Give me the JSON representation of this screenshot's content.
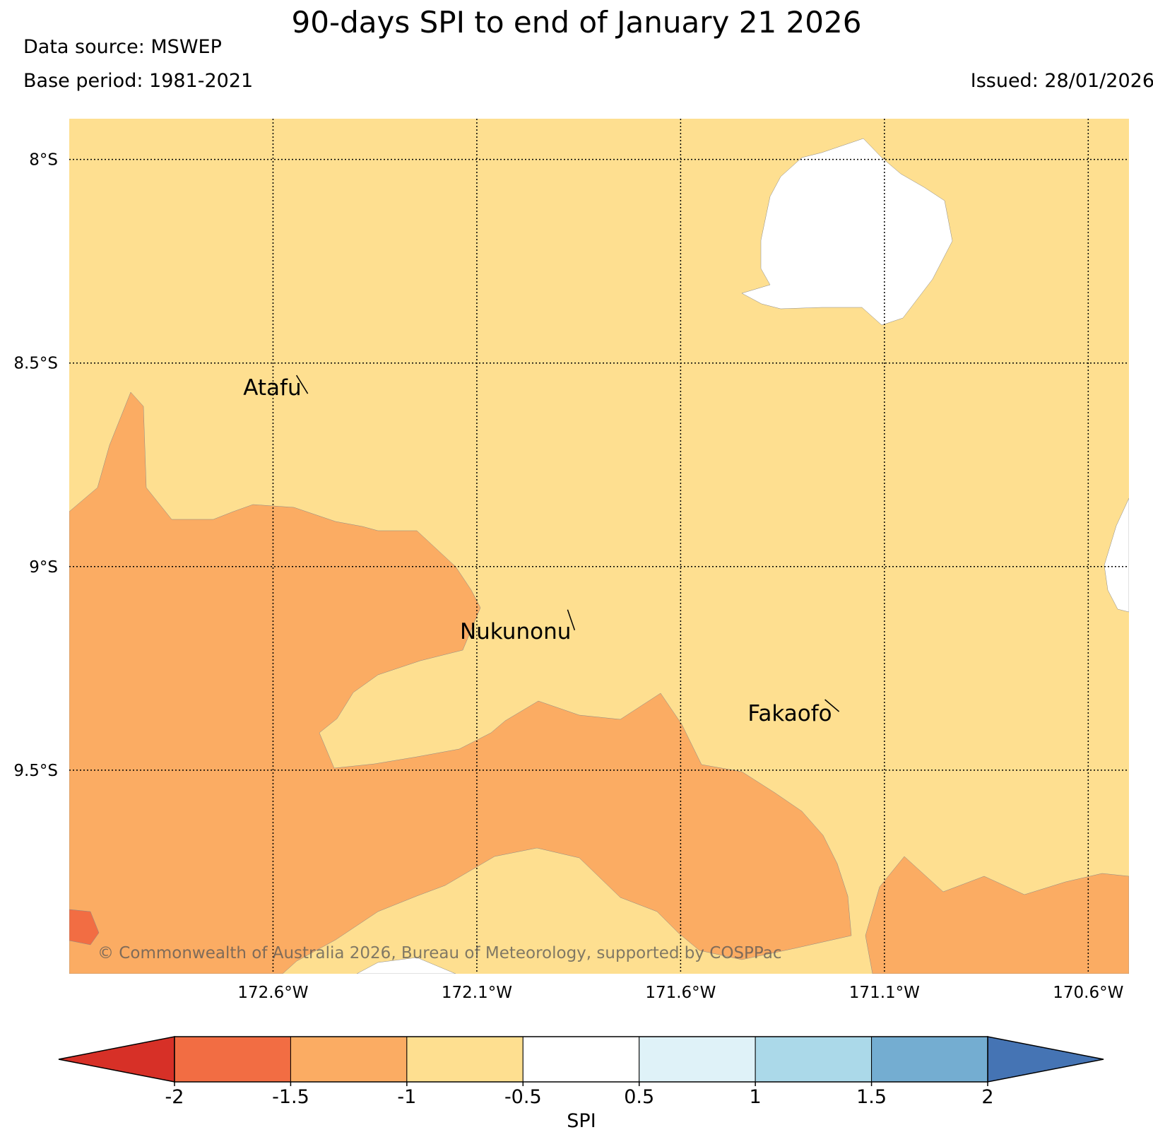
{
  "title": "90-days SPI to end of January 21 2026",
  "data_source": "Data source: MSWEP",
  "base_period": "Base period: 1981-2021",
  "issued": "Issued: 28/01/2026",
  "copyright": "© Commonwealth of Australia 2026, Bureau of Meteorology, supported by COSPPac",
  "map": {
    "lon_range": [
      -173.1,
      -170.5
    ],
    "lat_range": [
      -10.0,
      -7.9
    ],
    "lat_ticks": [
      {
        "value": -8.0,
        "label": "8°S"
      },
      {
        "value": -8.5,
        "label": "8.5°S"
      },
      {
        "value": -9.0,
        "label": "9°S"
      },
      {
        "value": -9.5,
        "label": "9.5°S"
      }
    ],
    "lon_ticks": [
      {
        "value": -172.6,
        "label": "172.6°W"
      },
      {
        "value": -172.1,
        "label": "172.1°W"
      },
      {
        "value": -171.6,
        "label": "171.6°W"
      },
      {
        "value": -171.1,
        "label": "171.1°W"
      },
      {
        "value": -170.6,
        "label": "170.6°W"
      }
    ],
    "places": [
      {
        "name": "Atafu",
        "lon": -172.52,
        "lat": -8.57
      },
      {
        "name": "Nukunonu",
        "lon": -171.86,
        "lat": -9.17
      },
      {
        "name": "Fakaofo",
        "lon": -171.22,
        "lat": -9.37
      }
    ]
  },
  "colorbar": {
    "label": "SPI",
    "ticks": [
      "-2",
      "-1.5",
      "-1",
      "-0.5",
      "0.5",
      "1",
      "1.5",
      "2"
    ],
    "colors": [
      "#f26d43",
      "#fbac63",
      "#fedf90",
      "#ffffff",
      "#dff2f8",
      "#abd9e9",
      "#74add1"
    ],
    "under_color": "#d73027",
    "over_color": "#4574b4"
  }
}
